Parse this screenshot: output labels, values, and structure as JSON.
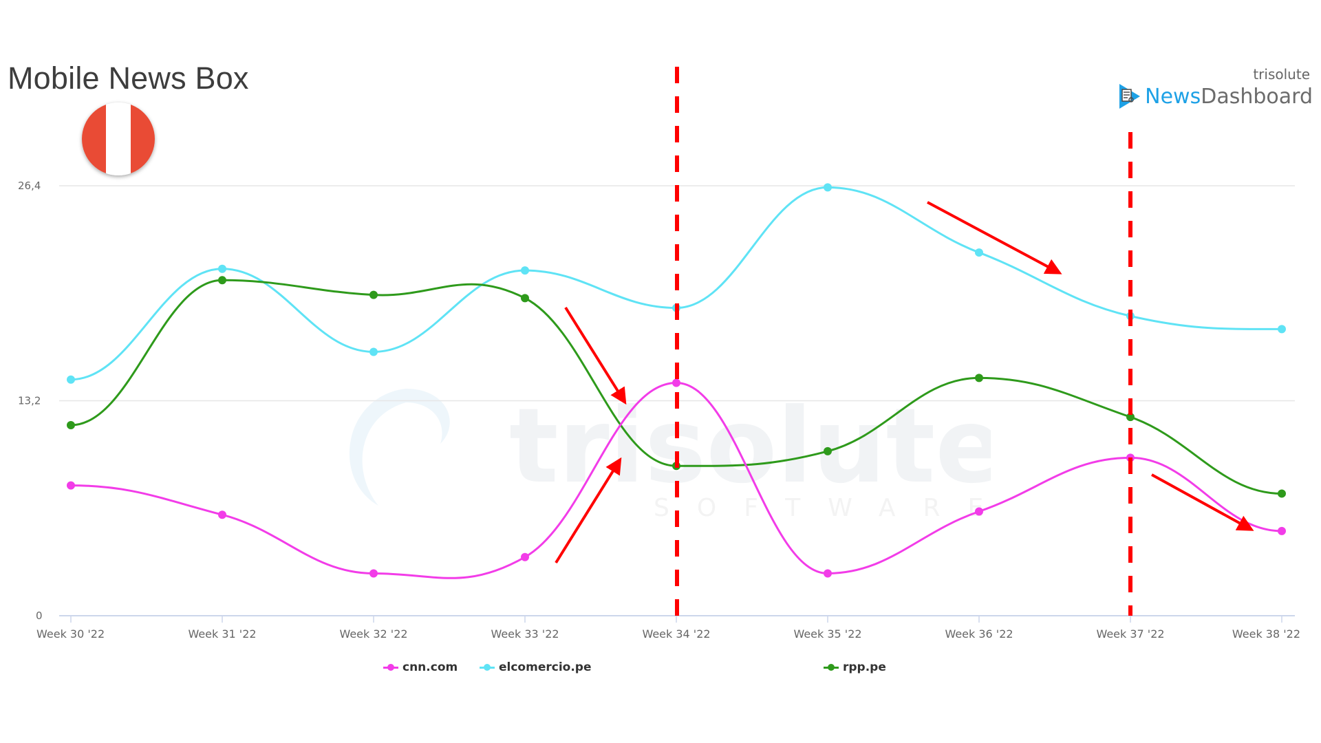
{
  "header": {
    "title": "Mobile News Box",
    "country_flag": {
      "name": "peru-flag",
      "colors": [
        "#e94b35",
        "#ffffff",
        "#e94b35"
      ]
    }
  },
  "logo": {
    "brand_small": "trisolute",
    "brand_news": "News",
    "brand_dashboard": "Dashboard",
    "icon": "news-document-play-icon"
  },
  "watermark": {
    "text": "trisolute",
    "subtext": "SOFTWARE"
  },
  "chart_data": {
    "type": "line",
    "title": "Mobile News Box",
    "xlabel": "",
    "ylabel": "",
    "categories": [
      "Week 30 '22",
      "Week 31 '22",
      "Week 32 '22",
      "Week 33 '22",
      "Week 34 '22",
      "Week 35 '22",
      "Week 36 '22",
      "Week 37 '22",
      "Week 38 '22"
    ],
    "y_ticks": [
      "0",
      "13,2",
      "26,4"
    ],
    "ylim": [
      0,
      26.4
    ],
    "grid": true,
    "legend_position": "bottom",
    "series": [
      {
        "name": "cnn.com",
        "color": "#f23ce8",
        "values": [
          8.0,
          6.2,
          2.6,
          3.6,
          14.3,
          2.6,
          6.4,
          9.7,
          5.2
        ]
      },
      {
        "name": "elcomercio.pe",
        "color": "#5fe3f5",
        "values": [
          14.5,
          21.3,
          16.2,
          21.2,
          18.9,
          26.3,
          22.3,
          18.4,
          17.6
        ]
      },
      {
        "name": "rpp.pe",
        "color": "#2e9a1b",
        "values": [
          11.7,
          20.6,
          19.7,
          19.5,
          9.2,
          10.1,
          14.6,
          12.2,
          7.5
        ]
      }
    ],
    "annotations": {
      "vertical_dashed_lines": [
        {
          "at": "Week 34 '22",
          "color": "#ff0000"
        },
        {
          "at": "Week 37 '22",
          "color": "#ff0000"
        }
      ],
      "arrows": [
        {
          "direction": "down",
          "near": "rpp.pe Week 33-34 drop",
          "color": "#ff0000"
        },
        {
          "direction": "up",
          "near": "cnn.com Week 33-34 rise",
          "color": "#ff0000"
        },
        {
          "direction": "down",
          "near": "elcomercio.pe Week 36-37 decline",
          "color": "#ff0000"
        },
        {
          "direction": "down",
          "near": "cnn.com Week 37-38 decline",
          "color": "#ff0000"
        }
      ]
    }
  },
  "legend": [
    {
      "label": "cnn.com",
      "color": "#f23ce8"
    },
    {
      "label": "elcomercio.pe",
      "color": "#5fe3f5"
    },
    {
      "label": "rpp.pe",
      "color": "#2e9a1b"
    }
  ]
}
